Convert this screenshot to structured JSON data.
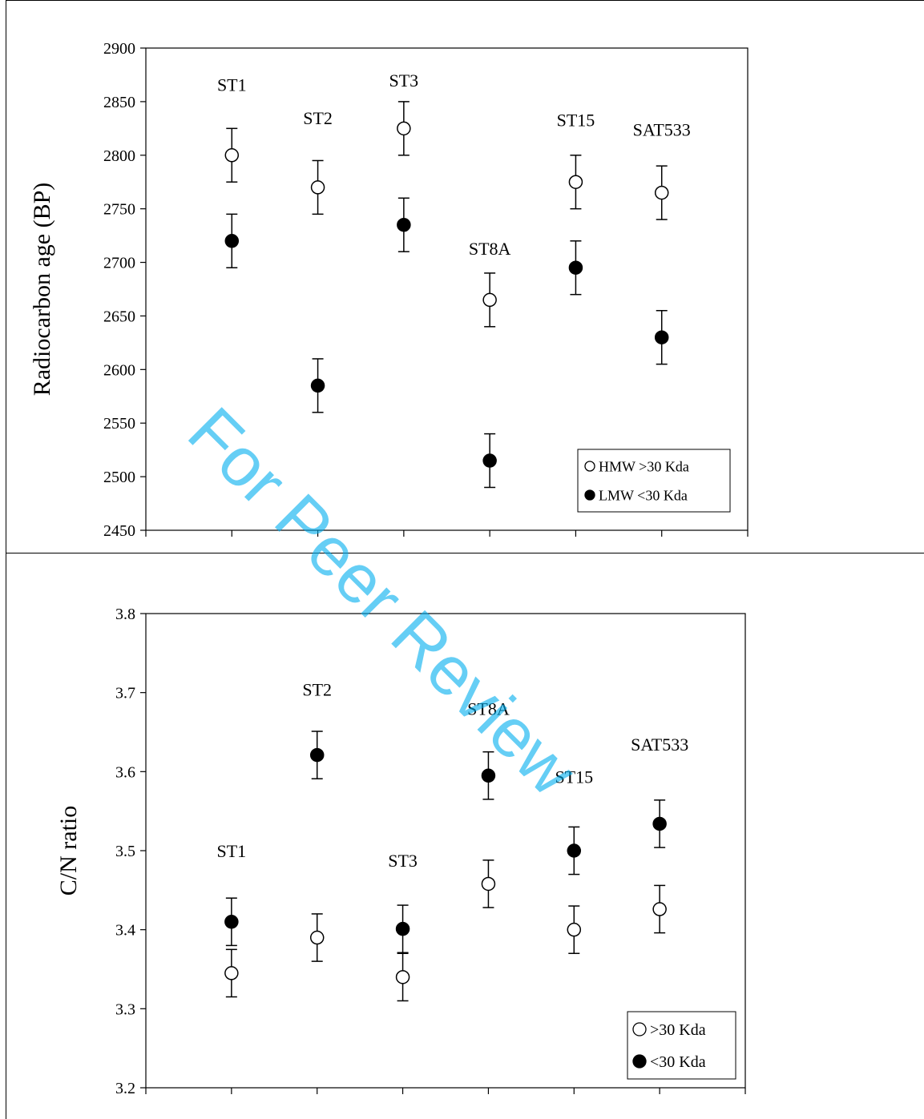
{
  "watermark": "For Peer Review",
  "chart_data": [
    {
      "type": "scatter",
      "title": "",
      "xlabel": "",
      "ylabel": "Radiocarbon age (BP)",
      "ylim": [
        2450,
        2900
      ],
      "yticks": [
        2450,
        2500,
        2550,
        2600,
        2650,
        2700,
        2750,
        2800,
        2850,
        2900
      ],
      "categories": [
        "ST1",
        "ST2",
        "ST3",
        "ST8A",
        "ST15",
        "SAT533"
      ],
      "grid": false,
      "legend_position": "bottom-right",
      "series": [
        {
          "name": "HMW >30 Kda",
          "marker": "open-circle",
          "values": [
            2800,
            2770,
            2825,
            2665,
            2775,
            2765
          ],
          "error": [
            25,
            25,
            25,
            25,
            25,
            25
          ]
        },
        {
          "name": "LMW <30 Kda",
          "marker": "filled-circle",
          "values": [
            2720,
            2585,
            2735,
            2515,
            2695,
            2630
          ],
          "error": [
            25,
            25,
            25,
            25,
            25,
            25
          ]
        }
      ],
      "labels": [
        {
          "text": "ST1",
          "x": 1,
          "y": 2866
        },
        {
          "text": "ST2",
          "x": 2,
          "y": 2835
        },
        {
          "text": "ST3",
          "x": 3,
          "y": 2870
        },
        {
          "text": "ST8A",
          "x": 4,
          "y": 2713
        },
        {
          "text": "ST15",
          "x": 5,
          "y": 2833
        },
        {
          "text": "SAT533",
          "x": 6,
          "y": 2824
        }
      ]
    },
    {
      "type": "scatter",
      "title": "",
      "xlabel": "",
      "ylabel": "C/N ratio",
      "ylim": [
        3.2,
        3.8
      ],
      "yticks": [
        3.2,
        3.3,
        3.4,
        3.5,
        3.6,
        3.7,
        3.8
      ],
      "categories": [
        "ST1",
        "ST2",
        "ST3",
        "ST8A",
        "ST15",
        "SAT533"
      ],
      "grid": false,
      "legend_position": "bottom-right",
      "series": [
        {
          "name": ">30 Kda",
          "marker": "open-circle",
          "values": [
            3.345,
            3.39,
            3.34,
            3.458,
            3.4,
            3.426
          ],
          "error": [
            0.03,
            0.03,
            0.03,
            0.03,
            0.03,
            0.03
          ]
        },
        {
          "name": "<30 Kda",
          "marker": "filled-circle",
          "values": [
            3.41,
            3.621,
            3.401,
            3.595,
            3.5,
            3.534
          ],
          "error": [
            0.03,
            0.03,
            0.03,
            0.03,
            0.03,
            0.03
          ]
        }
      ],
      "labels": [
        {
          "text": "ST1",
          "x": 1,
          "y": 3.5
        },
        {
          "text": "ST2",
          "x": 2,
          "y": 3.704
        },
        {
          "text": "ST3",
          "x": 3,
          "y": 3.488
        },
        {
          "text": "ST8A",
          "x": 4,
          "y": 3.68
        },
        {
          "text": "ST15",
          "x": 5,
          "y": 3.594
        },
        {
          "text": "SAT533",
          "x": 6,
          "y": 3.635
        }
      ]
    }
  ]
}
